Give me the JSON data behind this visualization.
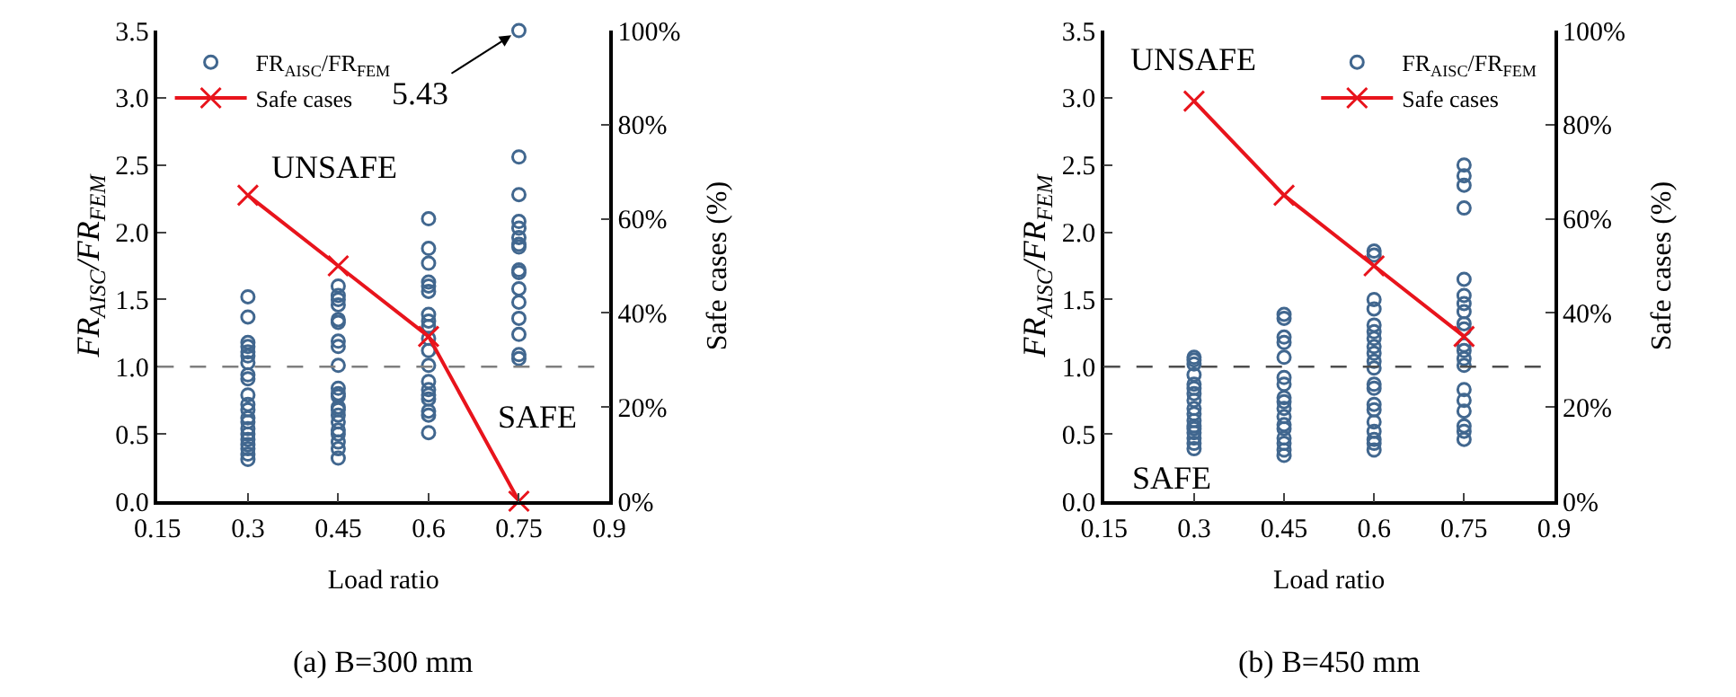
{
  "chart_data": [
    {
      "type": "scatter",
      "title": "(a) B=300 mm",
      "xlabel": "Load ratio",
      "ylabel": "FR$_{AISC}$/FR$_{FEM}$",
      "y2label": "Safe cases (%)",
      "xlim": [
        0.15,
        0.9
      ],
      "xticks": [
        0.15,
        0.3,
        0.45,
        0.6,
        0.75,
        0.9
      ],
      "ylim": [
        0,
        3.5
      ],
      "yticks": [
        {
          "value": 0,
          "label": "0.0"
        },
        0.5,
        {
          "value": 1,
          "label": "1.0"
        },
        1.5,
        {
          "value": 2,
          "label": "2.0"
        },
        2.5,
        {
          "value": 3,
          "label": "3.0"
        },
        3.5
      ],
      "y2lim": [
        0,
        100
      ],
      "y2ticks": [
        {
          "value": 0,
          "label": "0%"
        },
        {
          "value": 20,
          "label": "20%"
        },
        {
          "value": 40,
          "label": "40%"
        },
        {
          "value": 60,
          "label": "60%"
        },
        {
          "value": 80,
          "label": "80%"
        },
        {
          "value": 100,
          "label": "100%"
        }
      ],
      "legend": "top left",
      "series": [
        {
          "name": "FR$_{AISC}$/FR$_{FEM}$",
          "marker": "circle",
          "color": "#41678f",
          "x": [
            0.3,
            0.3,
            0.3,
            0.3,
            0.3,
            0.3,
            0.3,
            0.3,
            0.3,
            0.3,
            0.3,
            0.3,
            0.3,
            0.3,
            0.3,
            0.3,
            0.3,
            0.3,
            0.3,
            0.3,
            0.3,
            0.45,
            0.45,
            0.45,
            0.45,
            0.45,
            0.45,
            0.45,
            0.45,
            0.45,
            0.45,
            0.45,
            0.45,
            0.45,
            0.45,
            0.45,
            0.45,
            0.45,
            0.45,
            0.45,
            0.45,
            0.45,
            0.6,
            0.6,
            0.6,
            0.6,
            0.6,
            0.6,
            0.6,
            0.6,
            0.6,
            0.6,
            0.6,
            0.6,
            0.6,
            0.6,
            0.6,
            0.6,
            0.6,
            0.6,
            0.6,
            0.75,
            0.75,
            0.75,
            0.75,
            0.75,
            0.75,
            0.75,
            0.75,
            0.75,
            0.75,
            0.75,
            0.75,
            0.75,
            0.75,
            0.75,
            0.75
          ],
          "values": [
            1.52,
            1.37,
            1.18,
            1.15,
            1.11,
            1.08,
            1.03,
            0.94,
            0.91,
            0.79,
            0.72,
            0.68,
            0.62,
            0.59,
            0.54,
            0.5,
            0.46,
            0.42,
            0.39,
            0.35,
            0.31,
            1.6,
            1.53,
            1.5,
            1.46,
            1.35,
            1.33,
            1.19,
            1.15,
            1.01,
            0.84,
            0.8,
            0.78,
            0.7,
            0.68,
            0.64,
            0.59,
            0.53,
            0.5,
            0.44,
            0.39,
            0.32,
            2.1,
            1.88,
            1.77,
            1.63,
            1.6,
            1.56,
            1.39,
            1.34,
            1.3,
            1.21,
            1.12,
            1.01,
            0.89,
            0.83,
            0.79,
            0.76,
            0.67,
            0.64,
            0.51,
            3.5,
            2.56,
            2.28,
            2.08,
            2.03,
            1.96,
            1.91,
            1.89,
            1.72,
            1.7,
            1.58,
            1.48,
            1.36,
            1.24,
            1.09,
            1.06
          ]
        },
        {
          "name": "Safe cases",
          "type": "line",
          "marker": "cross",
          "line_style": "solid",
          "color": "#e8141c",
          "axis": "y2",
          "x": [
            0.3,
            0.45,
            0.6,
            0.75
          ],
          "values": [
            65,
            50,
            35,
            0
          ]
        }
      ],
      "ref_lines": [
        {
          "axis": "y",
          "value": 1,
          "color": "#7f7f7f",
          "line_style": "dashed"
        }
      ],
      "annotations": [
        "UNSAFE",
        "SAFE",
        {
          "text": "5.43",
          "x": 0.75,
          "y": 3.5
        }
      ]
    },
    {
      "type": "scatter",
      "title": "(b) B=450 mm",
      "xlabel": "Load ratio",
      "ylabel": "FR$_{AISC}$/FR$_{FEM}$",
      "y2label": "Safe cases (%)",
      "xlim": [
        0.15,
        0.9
      ],
      "xticks": [
        0.15,
        0.3,
        0.45,
        0.6,
        0.75,
        0.9
      ],
      "ylim": [
        0,
        3.5
      ],
      "yticks": [
        {
          "value": 0,
          "label": "0.0"
        },
        0.5,
        {
          "value": 1,
          "label": "1.0"
        },
        1.5,
        {
          "value": 2,
          "label": "2.0"
        },
        2.5,
        {
          "value": 3,
          "label": "3.0"
        },
        3.5
      ],
      "y2lim": [
        0,
        100
      ],
      "y2ticks": [
        {
          "value": 0,
          "label": "0%"
        },
        {
          "value": 20,
          "label": "20%"
        },
        {
          "value": 40,
          "label": "40%"
        },
        {
          "value": 60,
          "label": "60%"
        },
        {
          "value": 80,
          "label": "80%"
        },
        {
          "value": 100,
          "label": "100%"
        }
      ],
      "legend": "top right",
      "series": [
        {
          "name": "FR$_{AISC}$/FR$_{FEM}$",
          "marker": "circle",
          "color": "#41678f",
          "x": [
            0.3,
            0.3,
            0.3,
            0.3,
            0.3,
            0.3,
            0.3,
            0.3,
            0.3,
            0.3,
            0.3,
            0.3,
            0.3,
            0.3,
            0.3,
            0.3,
            0.3,
            0.45,
            0.45,
            0.45,
            0.45,
            0.45,
            0.45,
            0.45,
            0.45,
            0.45,
            0.45,
            0.45,
            0.45,
            0.45,
            0.45,
            0.45,
            0.45,
            0.45,
            0.6,
            0.6,
            0.6,
            0.6,
            0.6,
            0.6,
            0.6,
            0.6,
            0.6,
            0.6,
            0.6,
            0.6,
            0.6,
            0.6,
            0.6,
            0.6,
            0.6,
            0.6,
            0.6,
            0.6,
            0.75,
            0.75,
            0.75,
            0.75,
            0.75,
            0.75,
            0.75,
            0.75,
            0.75,
            0.75,
            0.75,
            0.75,
            0.75,
            0.75,
            0.75,
            0.75,
            0.75,
            0.75,
            0.75,
            0.75
          ],
          "values": [
            1.07,
            1.05,
            1.02,
            0.94,
            0.87,
            0.84,
            0.8,
            0.75,
            0.69,
            0.65,
            0.6,
            0.56,
            0.54,
            0.51,
            0.47,
            0.43,
            0.39,
            1.39,
            1.36,
            1.22,
            1.18,
            1.07,
            0.92,
            0.87,
            0.77,
            0.74,
            0.69,
            0.63,
            0.57,
            0.54,
            0.47,
            0.43,
            0.38,
            0.34,
            1.86,
            1.83,
            1.5,
            1.43,
            1.31,
            1.26,
            1.21,
            1.15,
            1.1,
            1.04,
            0.99,
            0.87,
            0.84,
            0.72,
            0.68,
            0.59,
            0.52,
            0.46,
            0.43,
            0.38,
            2.5,
            2.42,
            2.35,
            2.18,
            1.65,
            1.53,
            1.47,
            1.41,
            1.32,
            1.28,
            1.16,
            1.12,
            1.06,
            1.01,
            0.83,
            0.75,
            0.67,
            0.56,
            0.52,
            0.46
          ]
        },
        {
          "name": "Safe cases",
          "type": "line",
          "marker": "cross",
          "line_style": "solid",
          "color": "#e8141c",
          "axis": "y2",
          "x": [
            0.3,
            0.45,
            0.6,
            0.75
          ],
          "values": [
            85,
            65,
            50,
            35
          ]
        }
      ],
      "ref_lines": [
        {
          "axis": "y",
          "value": 1,
          "color": "#4d4d4d",
          "line_style": "dashed"
        }
      ],
      "annotations": [
        "UNSAFE",
        "SAFE"
      ]
    }
  ]
}
